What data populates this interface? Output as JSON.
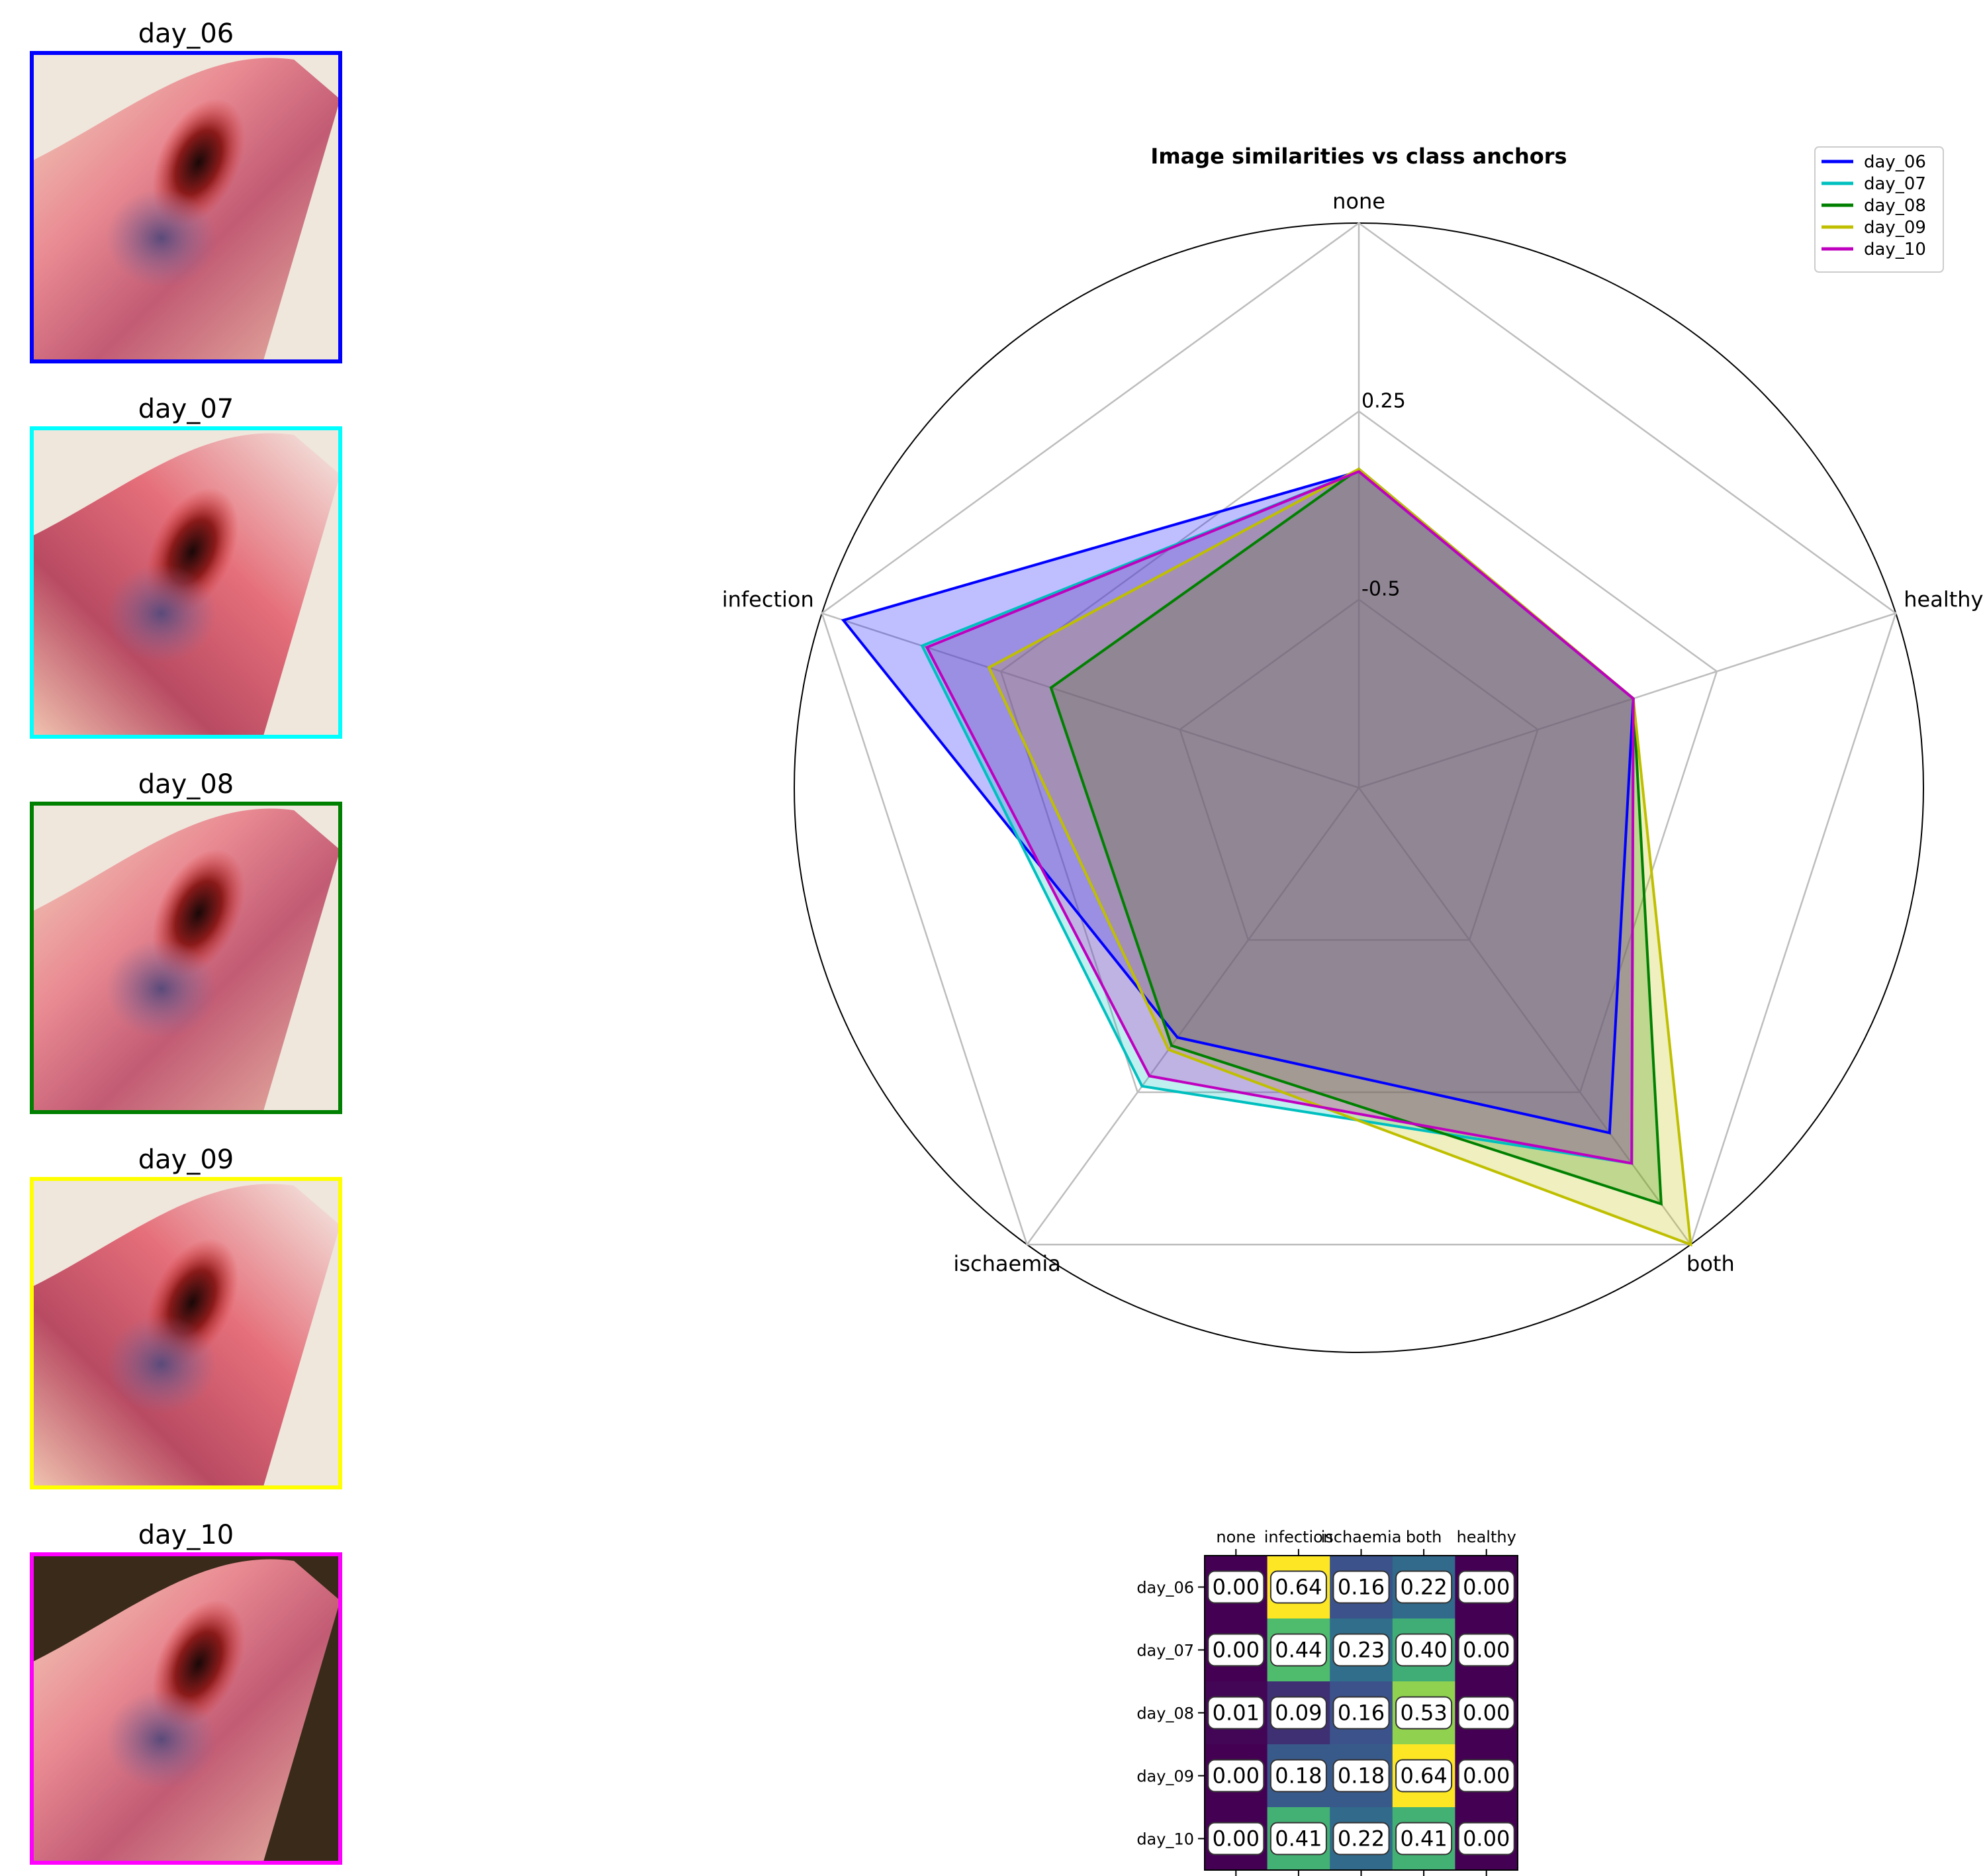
{
  "thumbnails": [
    {
      "label": "day_06",
      "border_color": "#0000ff"
    },
    {
      "label": "day_07",
      "border_color": "#00ffff"
    },
    {
      "label": "day_08",
      "border_color": "#008000"
    },
    {
      "label": "day_09",
      "border_color": "#ffff00"
    },
    {
      "label": "day_10",
      "border_color": "#ff00ff"
    }
  ],
  "chart_data": [
    {
      "type": "radar",
      "title": "Image similarities vs class anchors",
      "axes": [
        "none",
        "infection",
        "ischaemia",
        "both",
        "healthy"
      ],
      "radial_ticks": [
        "-0.5",
        "0.25"
      ],
      "radial_tick_values": [
        -0.5,
        0.25
      ],
      "radial_range": [
        -1.25,
        1.0
      ],
      "grid": true,
      "legend_position": "top-right",
      "series": [
        {
          "name": "day_06",
          "color": "#0000ff",
          "values": [
            0.01,
            0.91,
            -0.02,
            0.45,
            -0.1
          ]
        },
        {
          "name": "day_07",
          "color": "#00bfbf",
          "values": [
            0.01,
            0.58,
            0.22,
            0.6,
            -0.1
          ]
        },
        {
          "name": "day_08",
          "color": "#008000",
          "values": [
            0.02,
            0.04,
            0.02,
            0.8,
            -0.1
          ]
        },
        {
          "name": "day_09",
          "color": "#bfbf00",
          "values": [
            0.02,
            0.3,
            0.04,
            1.0,
            -0.1
          ]
        },
        {
          "name": "day_10",
          "color": "#bf00bf",
          "values": [
            0.01,
            0.56,
            0.17,
            0.6,
            -0.1
          ]
        }
      ]
    },
    {
      "type": "heatmap",
      "columns": [
        "none",
        "infection",
        "ischaemia",
        "both",
        "healthy"
      ],
      "rows": [
        "day_06",
        "day_07",
        "day_08",
        "day_09",
        "day_10"
      ],
      "values": [
        [
          0.0,
          0.64,
          0.16,
          0.22,
          0.0
        ],
        [
          0.0,
          0.44,
          0.23,
          0.4,
          0.0
        ],
        [
          0.01,
          0.09,
          0.16,
          0.53,
          0.0
        ],
        [
          0.0,
          0.18,
          0.18,
          0.64,
          0.0
        ],
        [
          0.0,
          0.41,
          0.22,
          0.41,
          0.0
        ]
      ],
      "colormap": "viridis"
    }
  ]
}
